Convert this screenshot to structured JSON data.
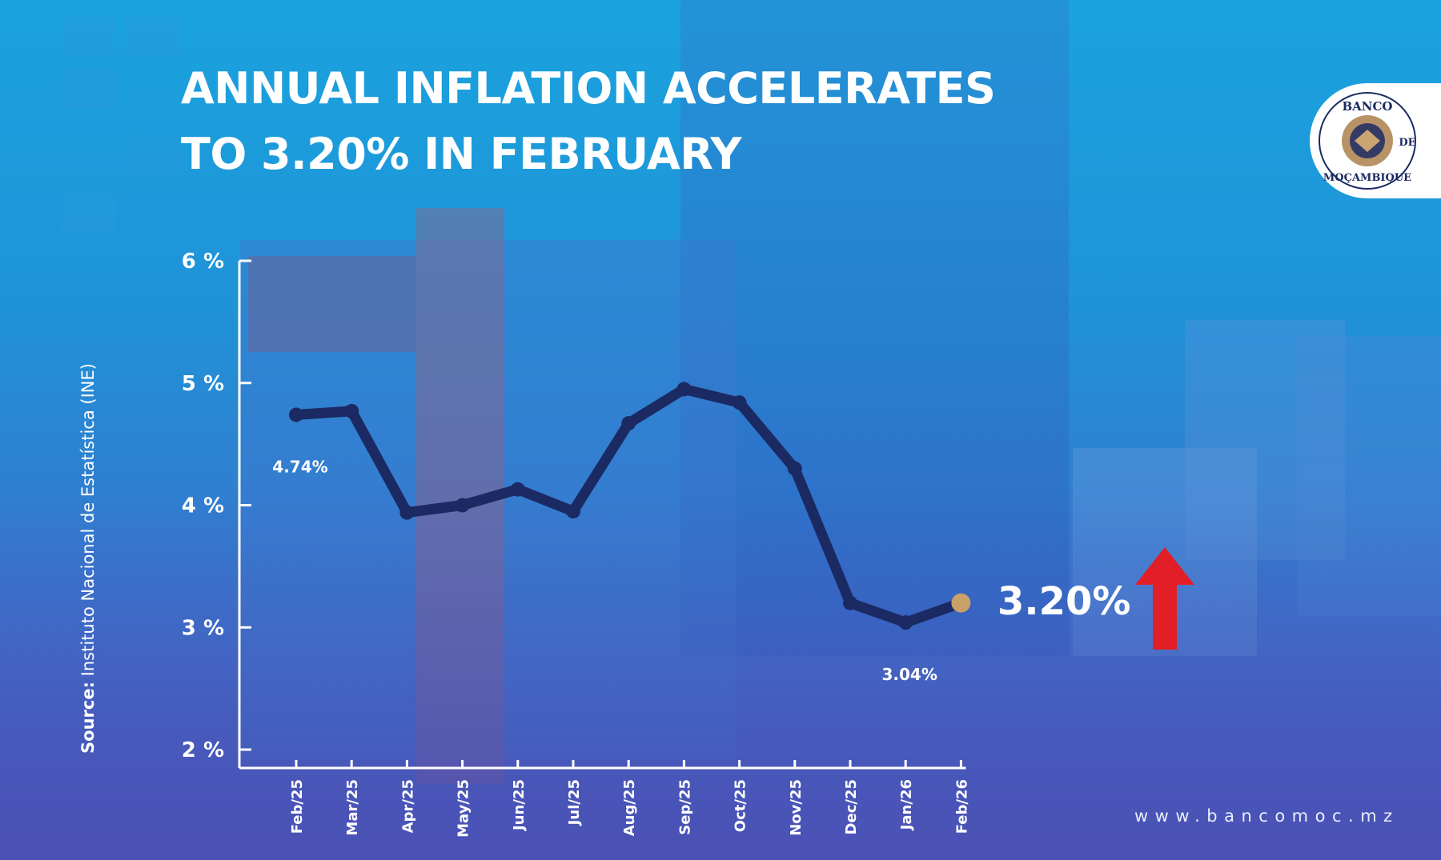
{
  "header": {
    "title_line1": "ANNUAL INFLATION ACCELERATES",
    "title_line2": "TO 3.20% IN FEBRUARY"
  },
  "source": {
    "prefix": "Source:",
    "text": "Instituto Nacional de Estatística (INE)"
  },
  "highlight": {
    "value": "3.20%",
    "arrow_color": "#e21f26",
    "trend_icon": "arrow-up-icon"
  },
  "footer": {
    "website": "www.bancomoc.mz"
  },
  "logo": {
    "text_top": "BANCO",
    "text_mid": "DE",
    "text_bottom": "MOÇAMBIQUE"
  },
  "colors": {
    "line": "#1b2a63",
    "highlight_point": "#c8a06a",
    "axis": "#ffffff",
    "text": "#ffffff"
  },
  "chart_data": {
    "type": "line",
    "title": "ANNUAL INFLATION ACCELERATES TO 3.20% IN FEBRUARY",
    "xlabel": "",
    "ylabel": "",
    "categories": [
      "Feb/25",
      "Mar/25",
      "Apr/25",
      "May/25",
      "Jun/25",
      "Jul/25",
      "Aug/25",
      "Sep/25",
      "Oct/25",
      "Nov/25",
      "Dec/25",
      "Jan/26",
      "Feb/26"
    ],
    "series": [
      {
        "values": [
          4.74,
          4.77,
          3.94,
          4.0,
          4.13,
          3.95,
          4.67,
          4.95,
          4.84,
          4.3,
          3.2,
          3.04,
          3.2
        ]
      }
    ],
    "ylim": [
      2,
      6
    ],
    "yticks": [
      2,
      3,
      4,
      5,
      6
    ],
    "ytick_labels": [
      "2 %",
      "3 %",
      "4 %",
      "5 %",
      "6 %"
    ],
    "data_labels": [
      {
        "index": 0,
        "text": "4.74%"
      },
      {
        "index": 11,
        "text": "3.04%"
      }
    ],
    "highlight_index": 12,
    "grid": false
  }
}
